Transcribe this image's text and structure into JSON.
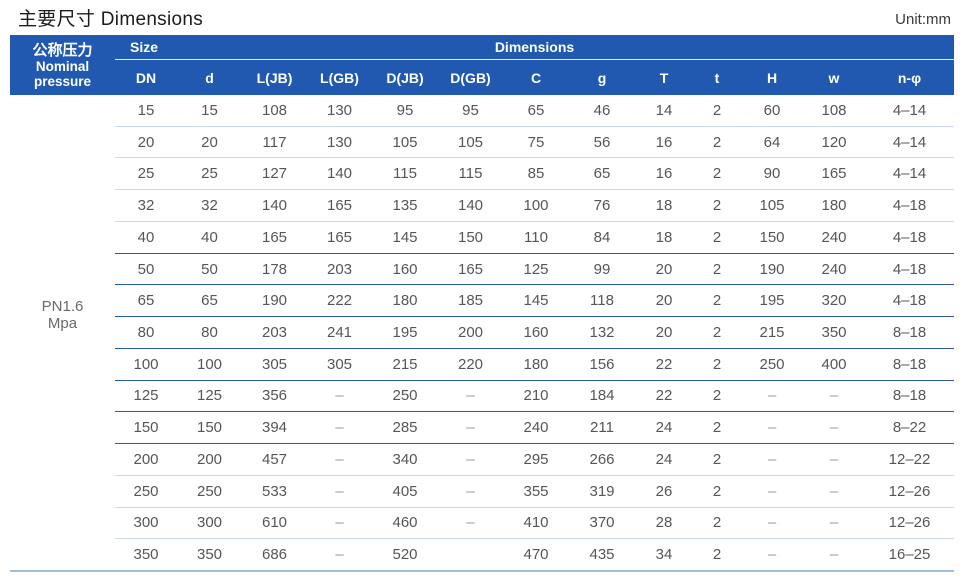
{
  "page": {
    "title": "主要尺寸 Dimensions",
    "unit": "Unit:mm"
  },
  "colors": {
    "header_blue": "#2159b0",
    "divider_light": "#ccd8ea",
    "divider_strong": "#2b59a6",
    "bottom_border": "#a2bcde",
    "text": "#55565a"
  },
  "table": {
    "pressure_header": {
      "zh": "公称压力",
      "en_line1": "Nominal",
      "en_line2": "pressure"
    },
    "size_label": "Size",
    "dimensions_label": "Dimensions",
    "columns": [
      "DN",
      "d",
      "L(JB)",
      "L(GB)",
      "D(JB)",
      "D(GB)",
      "C",
      "g",
      "T",
      "t",
      "H",
      "w",
      "n-φ"
    ],
    "pressure_value_line1": "PN1.6",
    "pressure_value_line2": "Mpa",
    "rows": [
      [
        "15",
        "15",
        "108",
        "130",
        "95",
        "95",
        "65",
        "46",
        "14",
        "2",
        "60",
        "108",
        "4–14"
      ],
      [
        "20",
        "20",
        "117",
        "130",
        "105",
        "105",
        "75",
        "56",
        "16",
        "2",
        "64",
        "120",
        "4–14"
      ],
      [
        "25",
        "25",
        "127",
        "140",
        "115",
        "115",
        "85",
        "65",
        "16",
        "2",
        "90",
        "165",
        "4–14"
      ],
      [
        "32",
        "32",
        "140",
        "165",
        "135",
        "140",
        "100",
        "76",
        "18",
        "2",
        "105",
        "180",
        "4–18"
      ],
      [
        "40",
        "40",
        "165",
        "165",
        "145",
        "150",
        "110",
        "84",
        "18",
        "2",
        "150",
        "240",
        "4–18"
      ],
      [
        "50",
        "50",
        "178",
        "203",
        "160",
        "165",
        "125",
        "99",
        "20",
        "2",
        "190",
        "240",
        "4–18"
      ],
      [
        "65",
        "65",
        "190",
        "222",
        "180",
        "185",
        "145",
        "118",
        "20",
        "2",
        "195",
        "320",
        "4–18"
      ],
      [
        "80",
        "80",
        "203",
        "241",
        "195",
        "200",
        "160",
        "132",
        "20",
        "2",
        "215",
        "350",
        "8–18"
      ],
      [
        "100",
        "100",
        "305",
        "305",
        "215",
        "220",
        "180",
        "156",
        "22",
        "2",
        "250",
        "400",
        "8–18"
      ],
      [
        "125",
        "125",
        "356",
        "–",
        "250",
        "–",
        "210",
        "184",
        "22",
        "2",
        "–",
        "–",
        "8–18"
      ],
      [
        "150",
        "150",
        "394",
        "–",
        "285",
        "–",
        "240",
        "211",
        "24",
        "2",
        "–",
        "–",
        "8–22"
      ],
      [
        "200",
        "200",
        "457",
        "–",
        "340",
        "–",
        "295",
        "266",
        "24",
        "2",
        "–",
        "–",
        "12–22"
      ],
      [
        "250",
        "250",
        "533",
        "–",
        "405",
        "–",
        "355",
        "319",
        "26",
        "2",
        "–",
        "–",
        "12–26"
      ],
      [
        "300",
        "300",
        "610",
        "–",
        "460",
        "–",
        "410",
        "370",
        "28",
        "2",
        "–",
        "–",
        "12–26"
      ],
      [
        "350",
        "350",
        "686",
        "–",
        "520",
        "",
        "470",
        "435",
        "34",
        "2",
        "–",
        "–",
        "16–25"
      ]
    ],
    "strong_divider_after_rows": [
      4,
      5,
      6,
      7,
      8,
      9,
      10
    ]
  }
}
